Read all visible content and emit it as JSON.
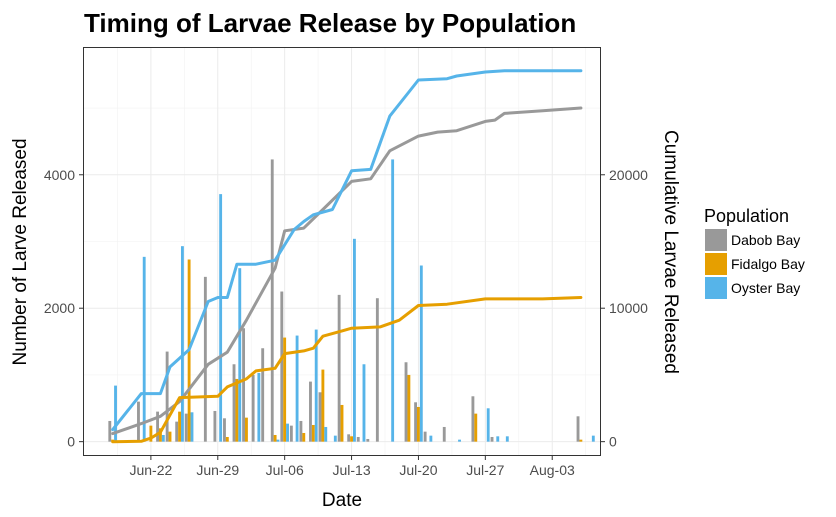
{
  "chart_data": {
    "type": "bar+line",
    "title": "Timing of Larvae Release by Population",
    "xlabel": "Date",
    "ylabel": "Number of Larve Released",
    "y2label": "Cumulative Larvae Released",
    "x_range": [
      "2017-06-15",
      "2017-08-08"
    ],
    "ylim": [
      -200,
      5900
    ],
    "y2lim": [
      -1000,
      29500
    ],
    "x_ticks": [
      {
        "date": "2017-06-22",
        "label": "Jun-22"
      },
      {
        "date": "2017-06-29",
        "label": "Jun-29"
      },
      {
        "date": "2017-07-06",
        "label": "Jul-06"
      },
      {
        "date": "2017-07-13",
        "label": "Jul-13"
      },
      {
        "date": "2017-07-20",
        "label": "Jul-20"
      },
      {
        "date": "2017-07-27",
        "label": "Jul-27"
      },
      {
        "date": "2017-08-03",
        "label": "Aug-03"
      }
    ],
    "y_ticks": [
      {
        "value": 0,
        "label": "0"
      },
      {
        "value": 2000,
        "label": "2000"
      },
      {
        "value": 4000,
        "label": "4000"
      }
    ],
    "y2_ticks": [
      {
        "value": 0,
        "label": "0"
      },
      {
        "value": 10000,
        "label": "10000"
      },
      {
        "value": 20000,
        "label": "20000"
      }
    ],
    "grid": true,
    "legend": {
      "title": "Population",
      "position": "right"
    },
    "series": [
      {
        "name": "Dabob Bay",
        "color": "#999999",
        "daily": [
          [
            "2017-06-18",
            310
          ],
          [
            "2017-06-21",
            600
          ],
          [
            "2017-06-23",
            450
          ],
          [
            "2017-06-24",
            1350
          ],
          [
            "2017-06-25",
            300
          ],
          [
            "2017-06-26",
            420
          ],
          [
            "2017-06-28",
            2470
          ],
          [
            "2017-06-29",
            460
          ],
          [
            "2017-06-30",
            350
          ],
          [
            "2017-07-01",
            1160
          ],
          [
            "2017-07-02",
            1700
          ],
          [
            "2017-07-03",
            1000
          ],
          [
            "2017-07-04",
            1400
          ],
          [
            "2017-07-05",
            4230
          ],
          [
            "2017-07-06",
            2250
          ],
          [
            "2017-07-07",
            240
          ],
          [
            "2017-07-08",
            310
          ],
          [
            "2017-07-09",
            900
          ],
          [
            "2017-07-10",
            740
          ],
          [
            "2017-07-12",
            2200
          ],
          [
            "2017-07-13",
            110
          ],
          [
            "2017-07-14",
            70
          ],
          [
            "2017-07-15",
            40
          ],
          [
            "2017-07-16",
            2150
          ],
          [
            "2017-07-19",
            1190
          ],
          [
            "2017-07-20",
            590
          ],
          [
            "2017-07-21",
            150
          ],
          [
            "2017-07-23",
            220
          ],
          [
            "2017-07-26",
            680
          ],
          [
            "2017-07-28",
            70
          ],
          [
            "2017-08-06",
            380
          ]
        ],
        "cumulative": [
          [
            "2017-06-18",
            600
          ],
          [
            "2017-06-21",
            1350
          ],
          [
            "2017-06-23",
            1900
          ],
          [
            "2017-06-25",
            3000
          ],
          [
            "2017-06-28",
            5800
          ],
          [
            "2017-06-30",
            6700
          ],
          [
            "2017-07-02",
            9100
          ],
          [
            "2017-07-05",
            13000
          ],
          [
            "2017-07-06",
            15800
          ],
          [
            "2017-07-08",
            16000
          ],
          [
            "2017-07-10",
            17400
          ],
          [
            "2017-07-13",
            19500
          ],
          [
            "2017-07-15",
            19700
          ],
          [
            "2017-07-17",
            21800
          ],
          [
            "2017-07-20",
            22900
          ],
          [
            "2017-07-22",
            23200
          ],
          [
            "2017-07-24",
            23300
          ],
          [
            "2017-07-27",
            24000
          ],
          [
            "2017-07-28",
            24100
          ],
          [
            "2017-07-29",
            24600
          ],
          [
            "2017-08-02",
            24800
          ],
          [
            "2017-08-06",
            25000
          ]
        ]
      },
      {
        "name": "Fidalgo Bay",
        "color": "#E69F00",
        "daily": [
          [
            "2017-06-18",
            30
          ],
          [
            "2017-06-22",
            240
          ],
          [
            "2017-06-23",
            200
          ],
          [
            "2017-06-24",
            150
          ],
          [
            "2017-06-25",
            450
          ],
          [
            "2017-06-26",
            2730
          ],
          [
            "2017-06-30",
            70
          ],
          [
            "2017-07-01",
            940
          ],
          [
            "2017-07-02",
            360
          ],
          [
            "2017-07-05",
            100
          ],
          [
            "2017-07-06",
            1560
          ],
          [
            "2017-07-08",
            130
          ],
          [
            "2017-07-09",
            250
          ],
          [
            "2017-07-10",
            1080
          ],
          [
            "2017-07-12",
            550
          ],
          [
            "2017-07-13",
            80
          ],
          [
            "2017-07-19",
            1000
          ],
          [
            "2017-07-20",
            520
          ],
          [
            "2017-07-26",
            420
          ],
          [
            "2017-08-06",
            30
          ]
        ],
        "cumulative": [
          [
            "2017-06-18",
            0
          ],
          [
            "2017-06-21",
            30
          ],
          [
            "2017-06-22",
            270
          ],
          [
            "2017-06-23",
            700
          ],
          [
            "2017-06-25",
            3300
          ],
          [
            "2017-06-29",
            3400
          ],
          [
            "2017-06-30",
            4100
          ],
          [
            "2017-07-02",
            4700
          ],
          [
            "2017-07-03",
            5300
          ],
          [
            "2017-07-05",
            5500
          ],
          [
            "2017-07-06",
            6600
          ],
          [
            "2017-07-08",
            6800
          ],
          [
            "2017-07-09",
            7000
          ],
          [
            "2017-07-10",
            7900
          ],
          [
            "2017-07-12",
            8300
          ],
          [
            "2017-07-13",
            8500
          ],
          [
            "2017-07-16",
            8600
          ],
          [
            "2017-07-18",
            9100
          ],
          [
            "2017-07-20",
            10200
          ],
          [
            "2017-07-23",
            10300
          ],
          [
            "2017-07-27",
            10700
          ],
          [
            "2017-08-02",
            10700
          ],
          [
            "2017-08-06",
            10800
          ]
        ]
      },
      {
        "name": "Oyster Bay",
        "color": "#56B4E9",
        "daily": [
          [
            "2017-06-18",
            840
          ],
          [
            "2017-06-21",
            2770
          ],
          [
            "2017-06-23",
            100
          ],
          [
            "2017-06-25",
            2930
          ],
          [
            "2017-06-26",
            440
          ],
          [
            "2017-06-29",
            3710
          ],
          [
            "2017-07-01",
            2600
          ],
          [
            "2017-07-03",
            1030
          ],
          [
            "2017-07-05",
            30
          ],
          [
            "2017-07-06",
            270
          ],
          [
            "2017-07-07",
            1590
          ],
          [
            "2017-07-09",
            1680
          ],
          [
            "2017-07-10",
            220
          ],
          [
            "2017-07-11",
            90
          ],
          [
            "2017-07-13",
            3040
          ],
          [
            "2017-07-14",
            1160
          ],
          [
            "2017-07-17",
            4230
          ],
          [
            "2017-07-20",
            2640
          ],
          [
            "2017-07-21",
            90
          ],
          [
            "2017-07-24",
            30
          ],
          [
            "2017-07-27",
            500
          ],
          [
            "2017-07-28",
            80
          ],
          [
            "2017-07-29",
            80
          ],
          [
            "2017-08-07",
            90
          ]
        ],
        "cumulative": [
          [
            "2017-06-18",
            900
          ],
          [
            "2017-06-21",
            3600
          ],
          [
            "2017-06-23",
            3600
          ],
          [
            "2017-06-24",
            5600
          ],
          [
            "2017-06-26",
            6900
          ],
          [
            "2017-06-28",
            10500
          ],
          [
            "2017-06-29",
            10800
          ],
          [
            "2017-06-30",
            10800
          ],
          [
            "2017-07-01",
            13300
          ],
          [
            "2017-07-03",
            13300
          ],
          [
            "2017-07-05",
            13600
          ],
          [
            "2017-07-07",
            15900
          ],
          [
            "2017-07-08",
            16500
          ],
          [
            "2017-07-09",
            17000
          ],
          [
            "2017-07-11",
            17400
          ],
          [
            "2017-07-13",
            20300
          ],
          [
            "2017-07-15",
            20400
          ],
          [
            "2017-07-17",
            24400
          ],
          [
            "2017-07-19",
            26200
          ],
          [
            "2017-07-20",
            27100
          ],
          [
            "2017-07-23",
            27200
          ],
          [
            "2017-07-24",
            27400
          ],
          [
            "2017-07-27",
            27700
          ],
          [
            "2017-07-29",
            27800
          ],
          [
            "2017-08-06",
            27800
          ]
        ]
      }
    ]
  }
}
